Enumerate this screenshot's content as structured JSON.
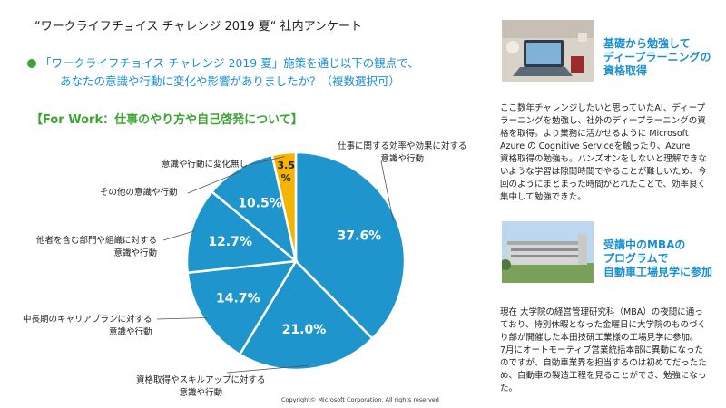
{
  "page": {
    "title": "“ワークライフチョイス チャレンジ 2019 夏“ 社内アンケート",
    "question_line1": "「ワークライフチョイス チャレンジ 2019 夏」施策を通じ以下の観点で、",
    "question_line2": "あなたの意識や行動に変化や影響がありましたか？（複数選択可）",
    "section_heading": "【For Work：仕事のやり方や自己啓発について】",
    "copyright": "Copyright©  Microsoft Corporation.  All rights reserved"
  },
  "colors": {
    "accent_blue": "#1a8fd0",
    "pie_blue": "#1e95cc",
    "highlight_yellow": "#f5b400",
    "green": "#3aa532"
  },
  "chart_data": {
    "type": "pie",
    "slices": [
      {
        "label_lines": [
          "仕事に関する効率や効果に対する",
          "意識や行動"
        ],
        "value": 37.6,
        "value_label": "37.6%",
        "color": "#1e95cc"
      },
      {
        "label_lines": [
          "資格取得やスキルアップに対する",
          "意識や行動"
        ],
        "value": 21.0,
        "value_label": "21.0%",
        "color": "#1e95cc"
      },
      {
        "label_lines": [
          "中長期のキャリアプランに対する",
          "意識や行動"
        ],
        "value": 14.7,
        "value_label": "14.7%",
        "color": "#1e95cc"
      },
      {
        "label_lines": [
          "他者を含む部門や組織に対する",
          "意識や行動"
        ],
        "value": 12.7,
        "value_label": "12.7%",
        "color": "#1e95cc"
      },
      {
        "label_lines": [
          "その他の意識や行動"
        ],
        "value": 10.5,
        "value_label": "10.5%",
        "color": "#1e95cc"
      },
      {
        "label_lines": [
          "意識や行動に変化無し"
        ],
        "value": 3.5,
        "value_label": "3.5%",
        "color": "#f5b400"
      }
    ]
  },
  "stories": [
    {
      "title_lines": [
        "基礎から勉強して",
        "ディープラーニングの",
        "資格取得"
      ],
      "image_icon": "laptop-desk-photo",
      "body_lines": [
        "ここ数年チャレンジしたいと思っていたAI、ディープ",
        "ラーニングを勉強し、社外のディープラーニングの資",
        "格を取得。より業務に活かせるように Microsoft",
        "Azure の Cognitive Serviceを触ったり、Azure",
        "資格取得の勉強も。ハンズオンをしないと理解できな",
        "いような学習は隙間時間でやることが難しいため、今",
        "回のようにまとまった時間がとれたことで、効率良く",
        "集中して勉強できた。"
      ]
    },
    {
      "title_lines": [
        "受講中のMBAの",
        "プログラムで",
        "自動車工場見学に参加"
      ],
      "image_icon": "factory-building-photo",
      "body_lines": [
        "現在 大学院の経営管理研究科（MBA）の夜間に通っ",
        "ており、特別休暇となった金曜日に大学院のものづく",
        "り部が開催した本田技研工業様の工場見学に参加。",
        "7月にオートモーティブ営業統括本部に異動になった",
        "のですが、自動車業界を担当するのは初めてだったた",
        "め、自動車の製造工程を見ることができ、勉強になっ",
        "た。"
      ]
    }
  ]
}
